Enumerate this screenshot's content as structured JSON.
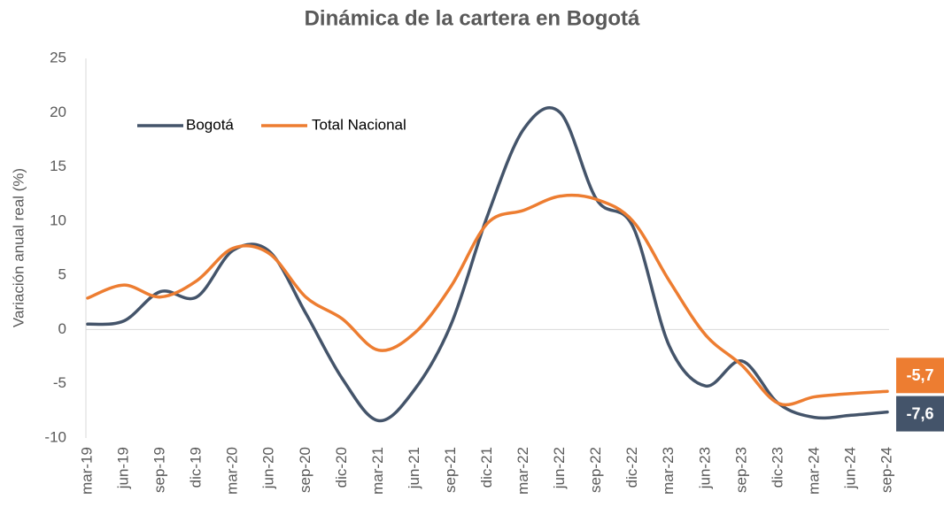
{
  "chart_data": {
    "type": "line",
    "title": "Dinámica de la cartera en Bogotá",
    "y_label": "Variación anual real (%)",
    "categories": [
      "mar-19",
      "jun-19",
      "sep-19",
      "dic-19",
      "mar-20",
      "jun-20",
      "sep-20",
      "dic-20",
      "mar-21",
      "jun-21",
      "sep-21",
      "dic-21",
      "mar-22",
      "jun-22",
      "sep-22",
      "dic-22",
      "mar-23",
      "jun-23",
      "sep-23",
      "dic-23",
      "mar-24",
      "jun-24",
      "sep-24"
    ],
    "series": [
      {
        "name": "Bogotá",
        "color": "#44546a",
        "end_label": "-7,6",
        "values": [
          0.5,
          0.8,
          3.5,
          3.0,
          7.3,
          7.2,
          1.5,
          -4.5,
          -8.4,
          -5.5,
          0.5,
          10.5,
          18.5,
          20.0,
          12.0,
          9.5,
          -1.5,
          -5.2,
          -2.9,
          -6.8,
          -8.1,
          -7.9,
          -7.6
        ]
      },
      {
        "name": "Total Nacional",
        "color": "#ed7d31",
        "end_label": "-5,7",
        "values": [
          2.9,
          4.1,
          3.0,
          4.5,
          7.5,
          7.0,
          3.0,
          1.0,
          -1.9,
          -0.3,
          4.0,
          9.8,
          11.0,
          12.3,
          12.0,
          10.0,
          4.5,
          -0.5,
          -3.3,
          -6.8,
          -6.2,
          -5.9,
          -5.7
        ]
      }
    ],
    "ylim": [
      -10,
      25
    ],
    "yticks": [
      -10,
      -5,
      0,
      5,
      10,
      15,
      20,
      25
    ],
    "grid": false,
    "legend": "upper left"
  }
}
